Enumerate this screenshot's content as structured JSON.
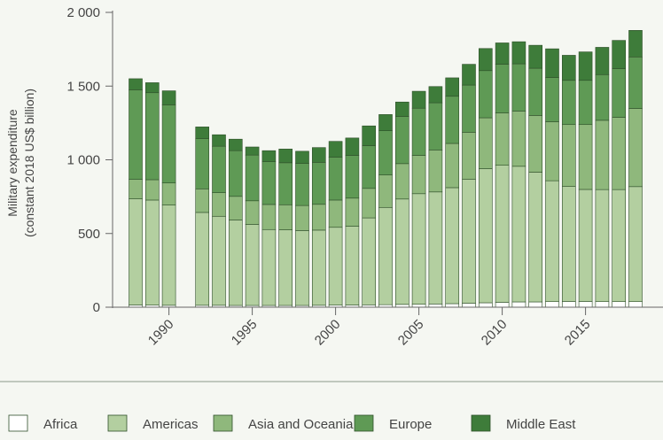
{
  "chart_data": {
    "type": "bar",
    "stacked": true,
    "title": "",
    "xlabel": "",
    "ylabel": [
      "Military expenditure",
      "(constant 2018 US$ billion)"
    ],
    "ylim": [
      0,
      2000
    ],
    "yticks": [
      {
        "value": 0,
        "label": "0"
      },
      {
        "value": 500,
        "label": "500"
      },
      {
        "value": 1000,
        "label": "1 000"
      },
      {
        "value": 1500,
        "label": "1 500"
      },
      {
        "value": 2000,
        "label": "2 000"
      }
    ],
    "xticks": [
      {
        "value": 1990,
        "label": "1990"
      },
      {
        "value": 1995,
        "label": "1995"
      },
      {
        "value": 2000,
        "label": "2000"
      },
      {
        "value": 2005,
        "label": "2005"
      },
      {
        "value": 2010,
        "label": "2010"
      },
      {
        "value": 2015,
        "label": "2015"
      }
    ],
    "grid": false,
    "legend": "bottom",
    "categories": [
      1988,
      1989,
      1990,
      1992,
      1993,
      1994,
      1995,
      1996,
      1997,
      1998,
      1999,
      2000,
      2001,
      2002,
      2003,
      2004,
      2005,
      2006,
      2007,
      2008,
      2009,
      2010,
      2011,
      2012,
      2013,
      2014,
      2015,
      2016,
      2017,
      2018
    ],
    "series": [
      {
        "name": "Africa",
        "color": "#ffffff",
        "values": [
          15,
          14,
          13,
          13,
          13,
          12,
          12,
          12,
          12,
          12,
          13,
          14,
          15,
          16,
          17,
          19,
          20,
          22,
          24,
          27,
          30,
          33,
          36,
          36,
          38,
          39,
          39,
          38,
          38,
          38
        ]
      },
      {
        "name": "Americas",
        "color": "#b3cfa0",
        "values": [
          720,
          713,
          680,
          630,
          604,
          580,
          550,
          515,
          513,
          508,
          510,
          528,
          535,
          590,
          660,
          715,
          750,
          760,
          787,
          840,
          910,
          930,
          920,
          880,
          820,
          780,
          760,
          760,
          760,
          780
        ]
      },
      {
        "name": "Asia and Oceania",
        "color": "#8fb87c",
        "values": [
          132,
          138,
          150,
          160,
          160,
          160,
          160,
          170,
          170,
          170,
          175,
          185,
          190,
          200,
          220,
          240,
          260,
          285,
          300,
          320,
          345,
          355,
          375,
          385,
          400,
          420,
          440,
          470,
          490,
          530
        ]
      },
      {
        "name": "Europe",
        "color": "#5f9a55",
        "values": [
          608,
          590,
          530,
          340,
          315,
          310,
          310,
          290,
          285,
          285,
          285,
          290,
          290,
          290,
          300,
          320,
          320,
          320,
          320,
          320,
          320,
          330,
          320,
          320,
          300,
          300,
          300,
          310,
          330,
          350
        ]
      },
      {
        "name": "Middle East",
        "color": "#3e7c3a",
        "values": [
          75,
          68,
          95,
          80,
          78,
          78,
          55,
          75,
          93,
          83,
          100,
          108,
          118,
          134,
          110,
          98,
          115,
          110,
          125,
          141,
          150,
          145,
          150,
          156,
          195,
          170,
          193,
          185,
          192,
          180
        ]
      }
    ]
  }
}
